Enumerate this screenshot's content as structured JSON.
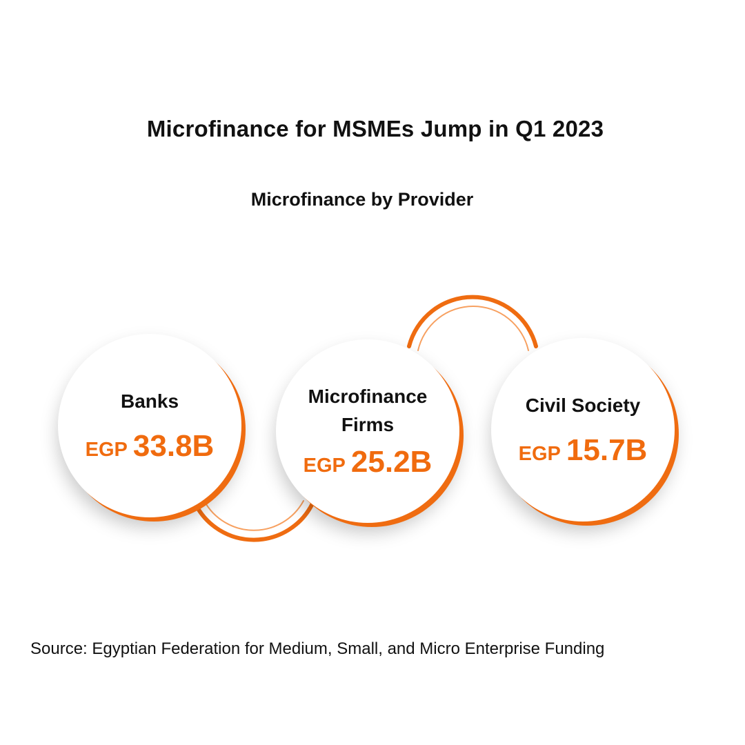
{
  "title": "Microfinance for MSMEs Jump in Q1 2023",
  "subtitle": "Microfinance by Provider",
  "source": "Source: Egyptian Federation for Medium, Small, and Micro Enterprise Funding",
  "colors": {
    "accent": "#f06b0e",
    "text": "#111111",
    "background": "#ffffff"
  },
  "chart_data": {
    "type": "bar",
    "title": "Microfinance by Provider",
    "categories": [
      "Banks",
      "Microfinance Firms",
      "Civil Society"
    ],
    "series": [
      {
        "values": [
          33.8,
          25.2,
          15.7
        ]
      }
    ],
    "items": [
      {
        "label": "Banks",
        "currency": "EGP",
        "value_text": "33.8B",
        "value": 33.8
      },
      {
        "label": "Microfinance Firms",
        "currency": "EGP",
        "value_text": "25.2B",
        "value": 25.2
      },
      {
        "label": "Civil Society",
        "currency": "EGP",
        "value_text": "15.7B",
        "value": 15.7
      }
    ]
  }
}
